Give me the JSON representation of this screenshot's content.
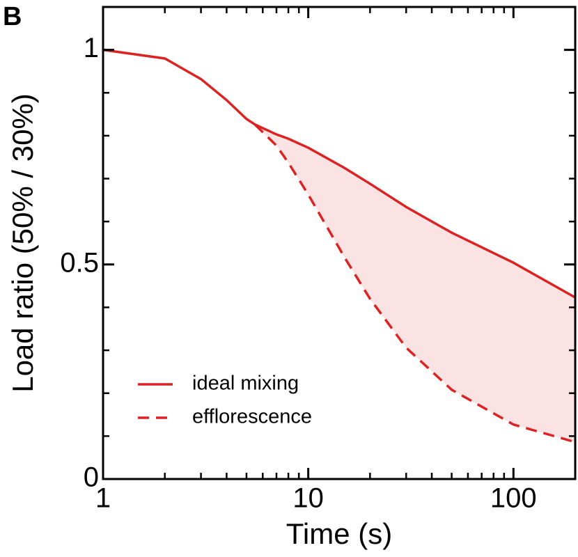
{
  "chart_data": {
    "type": "line",
    "panel_label": "B",
    "x_label": "Time (s)",
    "y_label": "Load ratio (50% / 30%)",
    "x": [
      1,
      2,
      3,
      4,
      5,
      5.5,
      7,
      8,
      10,
      15,
      20,
      30,
      50,
      100,
      200
    ],
    "series": [
      {
        "name": "ideal mixing",
        "color": "#dd2222",
        "dash": false,
        "values": [
          1.0,
          0.98,
          0.932,
          0.883,
          0.839,
          0.826,
          0.803,
          0.793,
          0.772,
          0.725,
          0.688,
          0.634,
          0.574,
          0.504,
          0.423
        ]
      },
      {
        "name": "efflorescence",
        "color": "#dd2222",
        "dash": true,
        "values": [
          null,
          null,
          null,
          null,
          null,
          0.826,
          0.777,
          0.737,
          0.663,
          0.517,
          0.42,
          0.306,
          0.208,
          0.127,
          0.086
        ]
      }
    ],
    "fill_between_color": "#fbe3e3",
    "xscale": "log",
    "xlim": [
      1,
      200
    ],
    "xticks": [
      1,
      10,
      100
    ],
    "xticks_minor": [
      2,
      3,
      4,
      5,
      6,
      7,
      8,
      9,
      20,
      30,
      40,
      50,
      60,
      70,
      80,
      90,
      200
    ],
    "ylim": [
      0,
      1.1
    ],
    "yticks": [
      0,
      0.5,
      1
    ],
    "yticks_minor": [
      0.1,
      0.2,
      0.3,
      0.4,
      0.6,
      0.7,
      0.8,
      0.9
    ],
    "legend": "lower left"
  }
}
